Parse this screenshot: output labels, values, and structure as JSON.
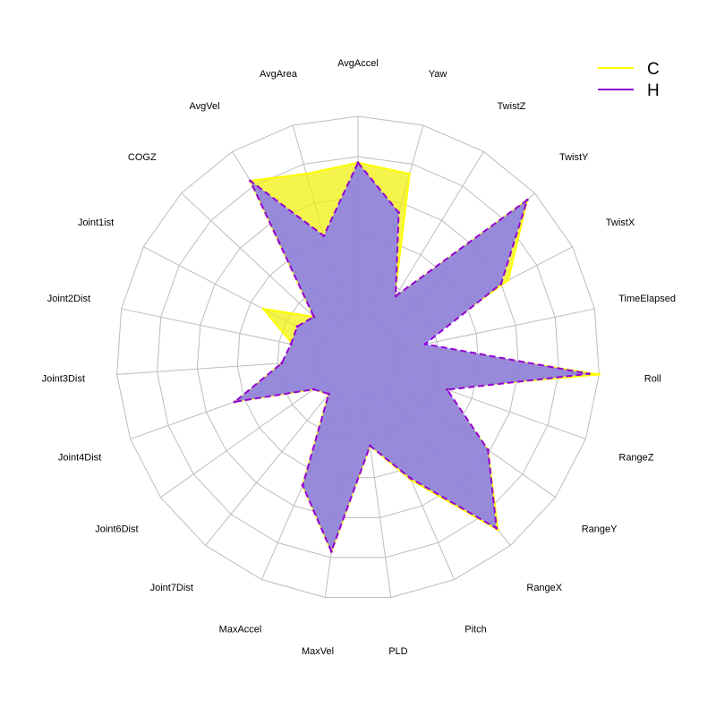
{
  "chart_data": {
    "type": "radar",
    "categories": [
      "AvgAccel",
      "Yaw",
      "TwistZ",
      "TwistY",
      "TwistX",
      "TimeElapsed",
      "Roll",
      "RangeZ",
      "RangeY",
      "RangeX",
      "Pitch",
      "PLD",
      "MaxVel",
      "MaxAccel",
      "Joint7Dist",
      "Joint6Dist",
      "Joint4Dist",
      "Joint3Dist",
      "Joint2Dist",
      "Joint1ist",
      "COGZ",
      "AvgVel",
      "AvgArea"
    ],
    "rlim": [
      -0.2,
      1
    ],
    "ring_values": [
      -0.2,
      0,
      0.2,
      0.4,
      0.6,
      0.8,
      1.0
    ],
    "grid": true,
    "legend_position": "top-right",
    "series": [
      {
        "name": "C",
        "color": "#ffff00",
        "fill": "#f0f000",
        "fill_opacity": 0.7,
        "values": [
          0.77,
          0.75,
          0.15,
          0.95,
          0.64,
          0.1,
          1.0,
          0.25,
          0.59,
          0.9,
          0.46,
          0.24,
          0.77,
          0.49,
          0.03,
          0.07,
          0.44,
          0.18,
          0.13,
          0.33,
          0.1,
          0.83,
          0.75
        ]
      },
      {
        "name": "H",
        "color": "#9400d3",
        "fill": "#7f6fff",
        "fill_opacity": 0.8,
        "values": [
          0.77,
          0.55,
          0.16,
          0.95,
          0.6,
          0.14,
          0.95,
          0.27,
          0.59,
          0.89,
          0.45,
          0.24,
          0.77,
          0.49,
          0.03,
          0.07,
          0.45,
          0.18,
          0.14,
          0.14,
          0.1,
          0.83,
          0.43
        ]
      }
    ]
  }
}
